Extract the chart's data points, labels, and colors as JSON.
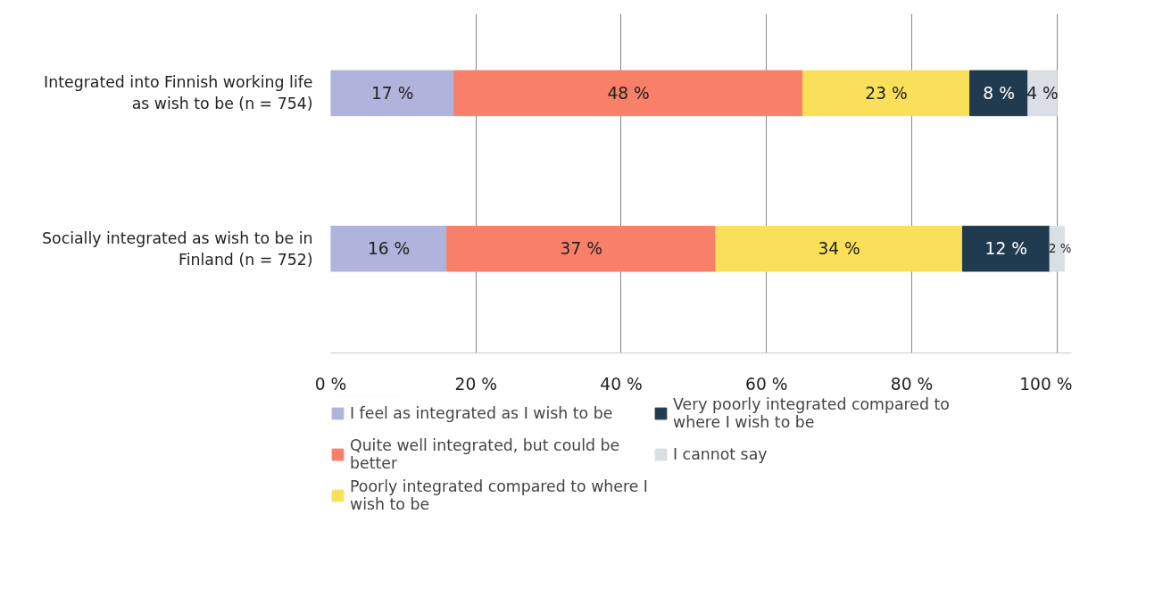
{
  "chart_data": {
    "type": "bar",
    "orientation": "horizontal",
    "stacked": true,
    "categories": [
      "Integrated into Finnish working life as wish to be (n = 754)",
      "Socially integrated as wish to be in Finland (n = 752)"
    ],
    "series": [
      {
        "name": "I feel as integrated as I wish to be",
        "color": "#b0b3dc",
        "values": [
          17,
          16
        ],
        "value_labels": [
          "17 %",
          "16 %"
        ]
      },
      {
        "name": "Quite well integrated, but could be better",
        "color": "#f98068",
        "values": [
          48,
          37
        ],
        "value_labels": [
          "48 %",
          "37 %"
        ]
      },
      {
        "name": "Poorly integrated compared to where I wish to be",
        "color": "#fae05a",
        "values": [
          23,
          34
        ],
        "value_labels": [
          "23 %",
          "34 %"
        ]
      },
      {
        "name": "Very poorly integrated compared to where I wish to be",
        "color": "#203a4f",
        "values": [
          8,
          12
        ],
        "value_labels": [
          "8 %",
          "12 %"
        ]
      },
      {
        "name": "I cannot say",
        "color": "#d9dfe5",
        "values": [
          4,
          2
        ],
        "value_labels": [
          "4 %",
          "2 %"
        ]
      }
    ],
    "xlim": [
      0,
      102
    ],
    "xticks": [
      {
        "value": 0,
        "label": "0 %"
      },
      {
        "value": 20,
        "label": "20 %"
      },
      {
        "value": 40,
        "label": "40 %"
      },
      {
        "value": 60,
        "label": "60 %"
      },
      {
        "value": 80,
        "label": "80 %"
      },
      {
        "value": 100,
        "label": "100 %"
      }
    ],
    "grid": "x",
    "legend": "bottom"
  }
}
